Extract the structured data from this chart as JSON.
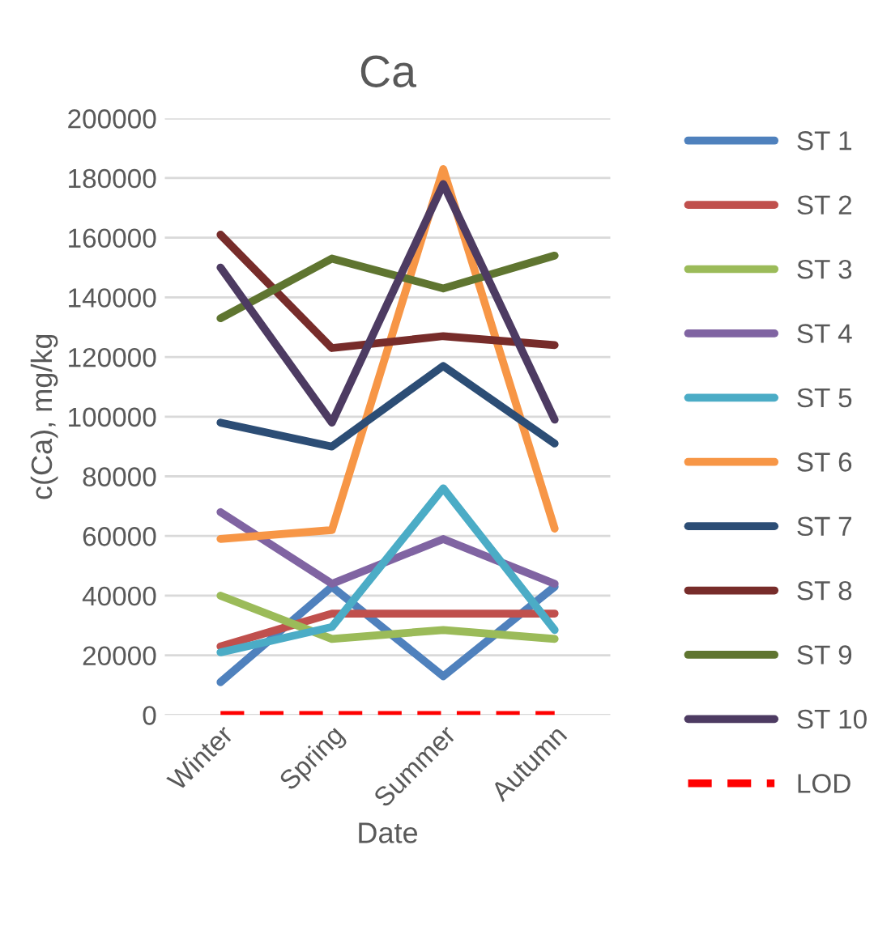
{
  "chart_data": {
    "type": "line",
    "title": "Ca",
    "xlabel": "Date",
    "ylabel": "c(Ca), mg/kg",
    "categories": [
      "Winter",
      "Spring",
      "Summer",
      "Autumn"
    ],
    "series": [
      {
        "name": "ST 1",
        "color": "#4f81bd",
        "values": [
          11000,
          43000,
          13000,
          43000
        ]
      },
      {
        "name": "ST 2",
        "color": "#c0504d",
        "values": [
          23000,
          34000,
          34000,
          34000
        ]
      },
      {
        "name": "ST 3",
        "color": "#9bbb59",
        "values": [
          40000,
          25500,
          28500,
          25500
        ]
      },
      {
        "name": "ST 4",
        "color": "#8064a2",
        "values": [
          68000,
          44000,
          59000,
          44000
        ]
      },
      {
        "name": "ST 5",
        "color": "#4bacc6",
        "values": [
          21000,
          29500,
          76000,
          28500
        ]
      },
      {
        "name": "ST 6",
        "color": "#f79646",
        "values": [
          59000,
          62000,
          183000,
          62500
        ]
      },
      {
        "name": "ST 7",
        "color": "#2c4d75",
        "values": [
          98000,
          90000,
          117000,
          91000
        ]
      },
      {
        "name": "ST 8",
        "color": "#772c2a",
        "values": [
          161000,
          123000,
          127000,
          124000
        ]
      },
      {
        "name": "ST 9",
        "color": "#5f7530",
        "values": [
          133000,
          153000,
          143000,
          154000
        ]
      },
      {
        "name": "ST 10",
        "color": "#4d3b62",
        "values": [
          150000,
          98000,
          178000,
          99000
        ]
      },
      {
        "name": "LOD",
        "color": "#ff0000",
        "line_style": "dashed",
        "values": [
          0,
          0,
          0,
          0
        ]
      }
    ],
    "ylim": [
      0,
      200000
    ],
    "yticks": [
      0,
      20000,
      40000,
      60000,
      80000,
      100000,
      120000,
      140000,
      160000,
      180000,
      200000
    ],
    "grid": "y",
    "legend": "right",
    "line_style": "solid",
    "marker": "none"
  }
}
